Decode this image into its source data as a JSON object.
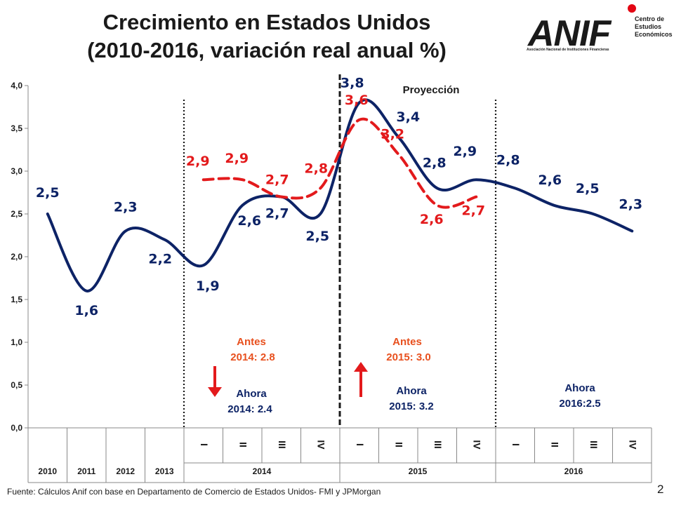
{
  "title_line1": "Crecimiento en Estados Unidos",
  "title_line2": "(2010-2016, variación real anual %)",
  "logo": {
    "brand": "ANIF",
    "side_line1": "Centro de",
    "side_line2": "Estudios",
    "side_line3": "Económicos",
    "subtitle": "Asociación Nacional de Instituciones Financieras",
    "accent_color": "#e30613"
  },
  "footer_source": "Fuente: Cálculos Anif con base en Departamento de Comercio de Estados Unidos- FMI y JPMorgan",
  "page_number": "2",
  "chart_data": {
    "type": "line",
    "title": "Crecimiento en Estados Unidos (2010-2016, variación real anual %)",
    "ylim": [
      0,
      4
    ],
    "yticks": [
      "0,0",
      "0,5",
      "1,0",
      "1,5",
      "2,0",
      "2,5",
      "3,0",
      "3,5",
      "4,0"
    ],
    "categories": [
      "2010",
      "2011",
      "2012",
      "2013",
      "2014 I",
      "2014 II",
      "2014 III",
      "2014 IV",
      "2015 I",
      "2015 II",
      "2015 III",
      "2015 IV",
      "2016 I",
      "2016 II",
      "2016 III",
      "2016 IV"
    ],
    "year_labels": [
      "2010",
      "2011",
      "2012",
      "2013",
      "2014",
      "2015",
      "2016"
    ],
    "quarter_labels": [
      "I",
      "II",
      "III",
      "IV"
    ],
    "series": [
      {
        "name": "Ahora",
        "color": "#0d2366",
        "values": [
          2.5,
          1.6,
          2.3,
          2.2,
          1.9,
          2.6,
          2.7,
          2.5,
          3.8,
          3.4,
          2.8,
          2.9,
          2.8,
          2.6,
          2.5,
          2.3
        ],
        "labels": [
          "2,5",
          "1,6",
          "2,3",
          "2,2",
          "1,9",
          "2,6",
          "2,7",
          "2,5",
          "3,8",
          "3,4",
          "2,8",
          "2,9",
          "2,8",
          "2,6",
          "2,5",
          "2,3"
        ]
      },
      {
        "name": "Antes",
        "color": "#e31a1c",
        "values": [
          null,
          null,
          null,
          null,
          2.9,
          2.9,
          2.7,
          2.8,
          3.6,
          3.2,
          2.6,
          2.7,
          null,
          null,
          null,
          null
        ],
        "labels": [
          "",
          "",
          "",
          "",
          "2,9",
          "2,9",
          "2,7",
          "2,8",
          "3,6",
          "3,2",
          "2,6",
          "2,7",
          "",
          "",
          "",
          ""
        ]
      }
    ],
    "annotations": {
      "projection": "Proyección",
      "before_2014_title": "Antes",
      "before_2014_value": "2014: 2.8",
      "now_2014_title": "Ahora",
      "now_2014_value": "2014: 2.4",
      "before_2015_title": "Antes",
      "before_2015_value": "2015: 3.0",
      "now_2015_title": "Ahora",
      "now_2015_value": "2015: 3.2",
      "now_2016_title": "Ahora",
      "now_2016_value": "2016:2.5"
    }
  }
}
